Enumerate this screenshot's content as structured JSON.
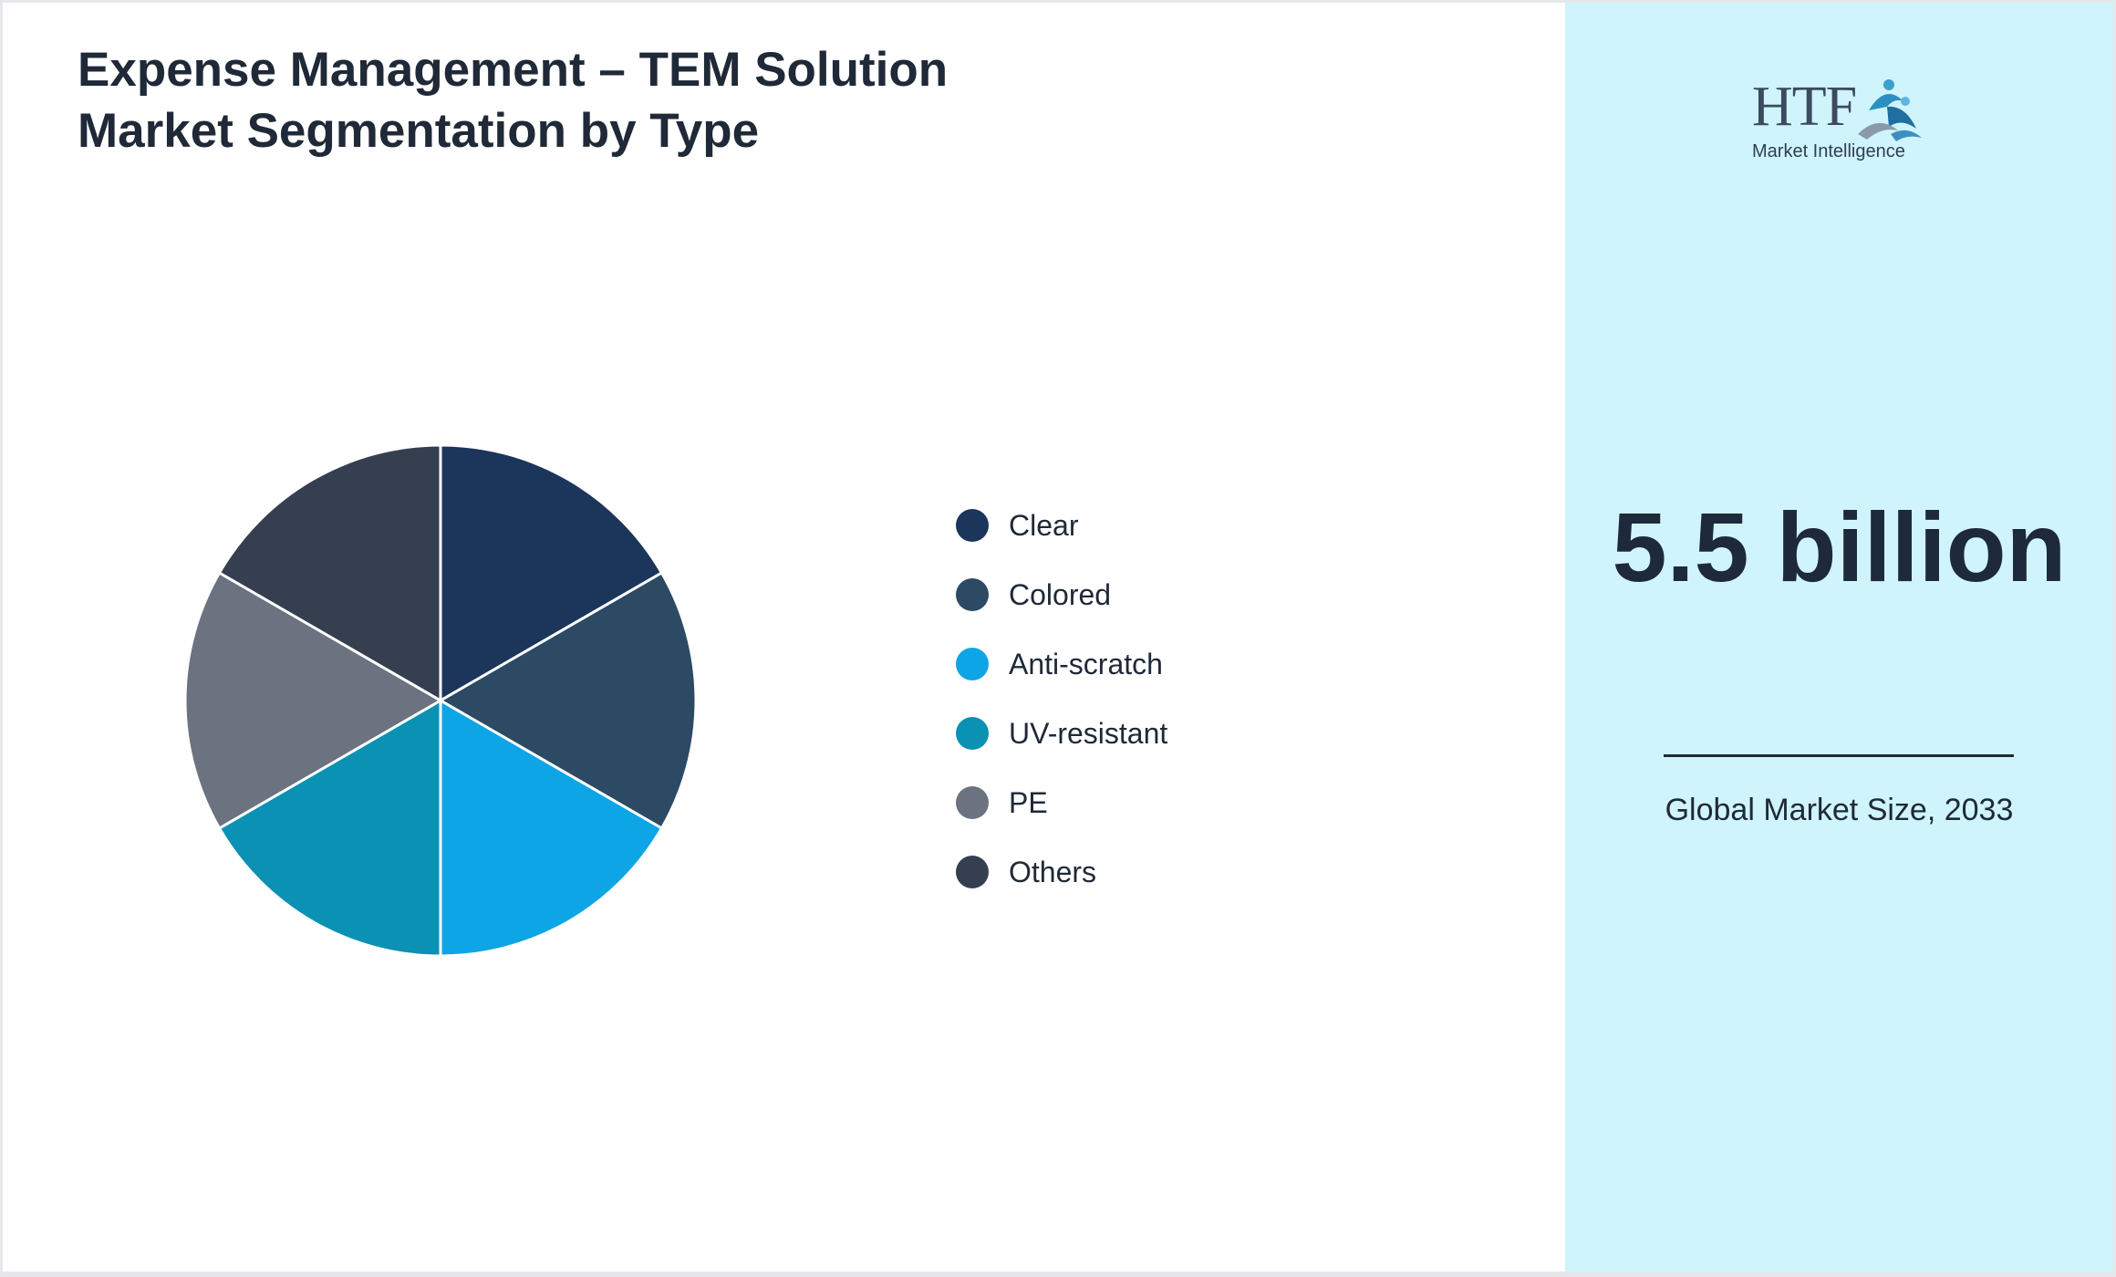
{
  "title": "Expense Management – TEM Solution Market Segmentation by Type",
  "chart_data": {
    "type": "pie",
    "title": "Expense Management – TEM Solution Market Segmentation by Type",
    "slices": [
      {
        "label": "Clear",
        "value": 16.67,
        "color": "#1b355b"
      },
      {
        "label": "Colored",
        "value": 16.67,
        "color": "#2c4a64"
      },
      {
        "label": "Anti-scratch",
        "value": 16.67,
        "color": "#0ea5e6"
      },
      {
        "label": "UV-resistant",
        "value": 16.67,
        "color": "#0a91b4"
      },
      {
        "label": "PE",
        "value": 16.67,
        "color": "#6b7280"
      },
      {
        "label": "Others",
        "value": 16.67,
        "color": "#353f50"
      }
    ],
    "legend_position": "right",
    "start_angle": "12 o'clock",
    "direction": "clockwise"
  },
  "logo": {
    "brand": "HTF",
    "tagline": "Market Intelligence"
  },
  "stat": {
    "value": "5.5 billion",
    "caption": "Global Market Size, 2033"
  },
  "colors": {
    "panel": "#cff4fc",
    "text": "#1f2937"
  }
}
